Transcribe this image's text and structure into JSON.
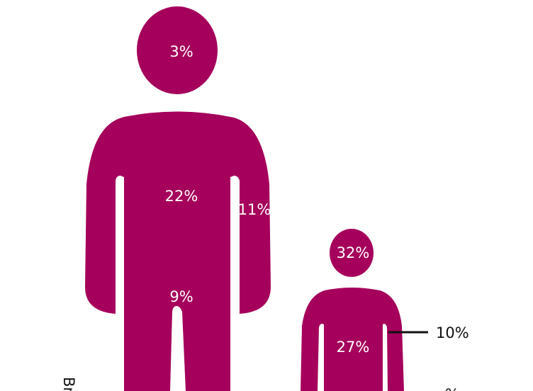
{
  "colors": {
    "figure": "#A5005B",
    "label_inside": "#ffffff",
    "label_outside": "#111111"
  },
  "adult": {
    "head": "3%",
    "trunk": "22%",
    "arm": "11%",
    "leg": "9%"
  },
  "child": {
    "head": "32%",
    "trunk": "27%",
    "arm": "10%",
    "cut_off_label": "%"
  },
  "side_text": "Br"
}
